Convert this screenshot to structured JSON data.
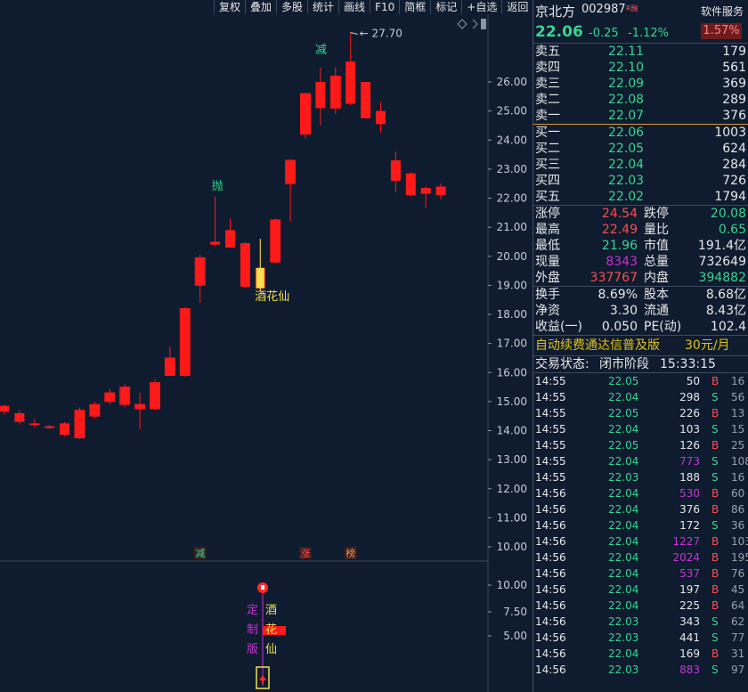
{
  "toolbar": {
    "buttons": [
      "复权",
      "叠加",
      "多股",
      "统计",
      "画线",
      "F10",
      "简框",
      "标记",
      "+自选",
      "返回"
    ]
  },
  "stock": {
    "name": "京北方",
    "code": "002987",
    "badge": "R融",
    "service_label": "软件服务",
    "last_price": "22.06",
    "change": "-0.25",
    "change_pct": "-1.12%",
    "amplitude_badge": "1.57%"
  },
  "order_book": {
    "asks": [
      {
        "label": "卖五",
        "price": "22.11",
        "volume": "179"
      },
      {
        "label": "卖四",
        "price": "22.10",
        "volume": "561"
      },
      {
        "label": "卖三",
        "price": "22.09",
        "volume": "369"
      },
      {
        "label": "卖二",
        "price": "22.08",
        "volume": "289"
      },
      {
        "label": "卖一",
        "price": "22.07",
        "volume": "376"
      }
    ],
    "bids": [
      {
        "label": "买一",
        "price": "22.06",
        "volume": "1003"
      },
      {
        "label": "买二",
        "price": "22.05",
        "volume": "624"
      },
      {
        "label": "买三",
        "price": "22.04",
        "volume": "284"
      },
      {
        "label": "买四",
        "price": "22.03",
        "volume": "726"
      },
      {
        "label": "买五",
        "price": "22.02",
        "volume": "1794"
      }
    ]
  },
  "stats": {
    "rows": [
      [
        {
          "label": "涨停",
          "value": "24.54",
          "color": "#ff4d4d"
        },
        {
          "label": "跌停",
          "value": "20.08",
          "color": "#36d690"
        }
      ],
      [
        {
          "label": "最高",
          "value": "22.49",
          "color": "#ff4d4d"
        },
        {
          "label": "量比",
          "value": "0.65",
          "color": "#36d690"
        }
      ],
      [
        {
          "label": "最低",
          "value": "21.96",
          "color": "#36d690"
        },
        {
          "label": "市值",
          "value": "191.4亿",
          "color": "#e8e8e8"
        }
      ],
      [
        {
          "label": "现量",
          "value": "8343",
          "color": "#c932d8"
        },
        {
          "label": "总量",
          "value": "732649",
          "color": "#e8e8e8"
        }
      ],
      [
        {
          "label": "外盘",
          "value": "337767",
          "color": "#ff4d4d"
        },
        {
          "label": "内盘",
          "value": "394882",
          "color": "#36d690"
        }
      ]
    ],
    "rows2": [
      [
        {
          "label": "换手",
          "value": "8.69%",
          "color": "#e8e8e8"
        },
        {
          "label": "股本",
          "value": "8.68亿",
          "color": "#e8e8e8"
        }
      ],
      [
        {
          "label": "净资",
          "value": "3.30",
          "color": "#e8e8e8"
        },
        {
          "label": "流通",
          "value": "8.43亿",
          "color": "#e8e8e8"
        }
      ],
      [
        {
          "label": "收益(一)",
          "value": "0.050",
          "color": "#e8e8e8"
        },
        {
          "label": "PE(动)",
          "value": "102.4",
          "color": "#e8e8e8"
        }
      ]
    ]
  },
  "promo": {
    "text": "自动续费通达信普及版",
    "price": "30元/月"
  },
  "trade_status": {
    "label": "交易状态:",
    "value": "闭市阶段",
    "time": "15:33:15"
  },
  "ticks": [
    {
      "time": "14:55",
      "price": "22.05",
      "vol": "50",
      "side": "B",
      "n": "16",
      "big": false
    },
    {
      "time": "14:55",
      "price": "22.04",
      "vol": "298",
      "side": "S",
      "n": "56",
      "big": false
    },
    {
      "time": "14:55",
      "price": "22.05",
      "vol": "226",
      "side": "B",
      "n": "13",
      "big": false
    },
    {
      "time": "14:55",
      "price": "22.04",
      "vol": "103",
      "side": "S",
      "n": "15",
      "big": false
    },
    {
      "time": "14:55",
      "price": "22.05",
      "vol": "126",
      "side": "B",
      "n": "25",
      "big": false
    },
    {
      "time": "14:55",
      "price": "22.04",
      "vol": "773",
      "side": "S",
      "n": "108",
      "big": true
    },
    {
      "time": "14:55",
      "price": "22.03",
      "vol": "188",
      "side": "S",
      "n": "16",
      "big": false
    },
    {
      "time": "14:56",
      "price": "22.04",
      "vol": "530",
      "side": "B",
      "n": "60",
      "big": true
    },
    {
      "time": "14:56",
      "price": "22.04",
      "vol": "376",
      "side": "B",
      "n": "86",
      "big": false
    },
    {
      "time": "14:56",
      "price": "22.04",
      "vol": "172",
      "side": "S",
      "n": "36",
      "big": false
    },
    {
      "time": "14:56",
      "price": "22.04",
      "vol": "1227",
      "side": "B",
      "n": "103",
      "big": true
    },
    {
      "time": "14:56",
      "price": "22.04",
      "vol": "2024",
      "side": "B",
      "n": "195",
      "big": true
    },
    {
      "time": "14:56",
      "price": "22.04",
      "vol": "537",
      "side": "B",
      "n": "76",
      "big": true
    },
    {
      "time": "14:56",
      "price": "22.04",
      "vol": "197",
      "side": "B",
      "n": "45",
      "big": false
    },
    {
      "time": "14:56",
      "price": "22.04",
      "vol": "225",
      "side": "B",
      "n": "64",
      "big": false
    },
    {
      "time": "14:56",
      "price": "22.03",
      "vol": "343",
      "side": "S",
      "n": "62",
      "big": false
    },
    {
      "time": "14:56",
      "price": "22.03",
      "vol": "441",
      "side": "S",
      "n": "77",
      "big": false
    },
    {
      "time": "14:56",
      "price": "22.04",
      "vol": "169",
      "side": "B",
      "n": "31",
      "big": false
    },
    {
      "time": "14:56",
      "price": "22.03",
      "vol": "883",
      "side": "S",
      "n": "97",
      "big": true
    }
  ],
  "chart_data": {
    "type": "candlestick",
    "y_ticks": [
      "26.00",
      "25.00",
      "24.00",
      "23.00",
      "22.00",
      "21.00",
      "20.00",
      "19.00",
      "18.00",
      "17.00",
      "16.00",
      "15.00",
      "14.00",
      "13.00",
      "12.00",
      "11.00",
      "10.00"
    ],
    "ylim": [
      9.8,
      27.9
    ],
    "candles": [
      {
        "o": 14.85,
        "c": 14.65,
        "h": 14.9,
        "l": 14.55,
        "up": false
      },
      {
        "o": 14.6,
        "c": 14.3,
        "h": 14.7,
        "l": 14.2,
        "up": false
      },
      {
        "o": 14.25,
        "c": 14.2,
        "h": 14.4,
        "l": 14.1,
        "up": false
      },
      {
        "o": 14.15,
        "c": 14.1,
        "h": 14.2,
        "l": 14.05,
        "up": false
      },
      {
        "o": 14.25,
        "c": 13.85,
        "h": 14.3,
        "l": 13.8,
        "up": false
      },
      {
        "o": 13.75,
        "c": 14.7,
        "h": 14.8,
        "l": 13.7,
        "up": true
      },
      {
        "o": 14.5,
        "c": 14.9,
        "h": 15.0,
        "l": 14.4,
        "up": true
      },
      {
        "o": 15.0,
        "c": 15.3,
        "h": 15.45,
        "l": 14.9,
        "up": true
      },
      {
        "o": 14.9,
        "c": 15.5,
        "h": 15.6,
        "l": 14.8,
        "up": true
      },
      {
        "o": 14.75,
        "c": 14.9,
        "h": 15.3,
        "l": 14.05,
        "up": true
      },
      {
        "o": 14.75,
        "c": 15.65,
        "h": 15.75,
        "l": 14.7,
        "up": true
      },
      {
        "o": 15.9,
        "c": 16.5,
        "h": 16.9,
        "l": 15.9,
        "up": true
      },
      {
        "o": 15.9,
        "c": 18.2,
        "h": 18.25,
        "l": 15.85,
        "up": true
      },
      {
        "o": 19.0,
        "c": 19.95,
        "h": 20.05,
        "l": 18.4,
        "up": true
      },
      {
        "o": 20.5,
        "c": 20.4,
        "h": 22.05,
        "l": 20.35,
        "up": false
      },
      {
        "o": 20.9,
        "c": 20.3,
        "h": 21.3,
        "l": 20.3,
        "up": false
      },
      {
        "o": 20.45,
        "c": 18.95,
        "h": 20.5,
        "l": 18.9,
        "up": false
      },
      {
        "o": 19.6,
        "c": 18.9,
        "h": 20.6,
        "l": 18.8,
        "up": false
      },
      {
        "o": 19.8,
        "c": 21.25,
        "h": 21.3,
        "l": 19.75,
        "up": true
      },
      {
        "o": 22.5,
        "c": 23.3,
        "h": 23.35,
        "l": 21.2,
        "up": true
      },
      {
        "o": 24.2,
        "c": 25.6,
        "h": 25.6,
        "l": 24.05,
        "up": true
      },
      {
        "o": 26.0,
        "c": 25.1,
        "h": 26.5,
        "l": 24.5,
        "up": false
      },
      {
        "o": 25.1,
        "c": 26.2,
        "h": 26.5,
        "l": 24.9,
        "up": true
      },
      {
        "o": 26.7,
        "c": 25.25,
        "h": 27.7,
        "l": 25.2,
        "up": false
      },
      {
        "o": 26.0,
        "c": 24.75,
        "h": 26.0,
        "l": 24.75,
        "up": false
      },
      {
        "o": 25.0,
        "c": 24.55,
        "h": 25.3,
        "l": 24.25,
        "up": false
      },
      {
        "o": 23.3,
        "c": 22.6,
        "h": 23.6,
        "l": 22.2,
        "up": false
      },
      {
        "o": 22.85,
        "c": 22.1,
        "h": 22.9,
        "l": 22.05,
        "up": false
      },
      {
        "o": 22.35,
        "c": 22.15,
        "h": 22.4,
        "l": 21.65,
        "up": false
      },
      {
        "o": 22.4,
        "c": 22.1,
        "h": 22.5,
        "l": 21.95,
        "up": false
      }
    ],
    "peak_label": "27.70",
    "annotations": [
      {
        "text": "减",
        "candle": 21,
        "color": "#36d690"
      },
      {
        "text": "抛",
        "candle": 14,
        "color": "#36d690"
      },
      {
        "text": "酒花仙",
        "candle": 17,
        "color": "#f5e050"
      }
    ],
    "bottom_markers": [
      {
        "text": "减",
        "candle": 13,
        "color": "#36d690"
      },
      {
        "text": "涨",
        "candle": 20,
        "color": "#ff4d4d"
      },
      {
        "text": "榜",
        "candle": 23,
        "color": "#ff8a3d"
      }
    ],
    "indicator_ticks": [
      "10.00",
      "7.50",
      "5.00"
    ],
    "indicator_labels": {
      "left": [
        "定",
        "制",
        "版"
      ],
      "right": [
        "酒",
        "花",
        "仙"
      ]
    }
  }
}
